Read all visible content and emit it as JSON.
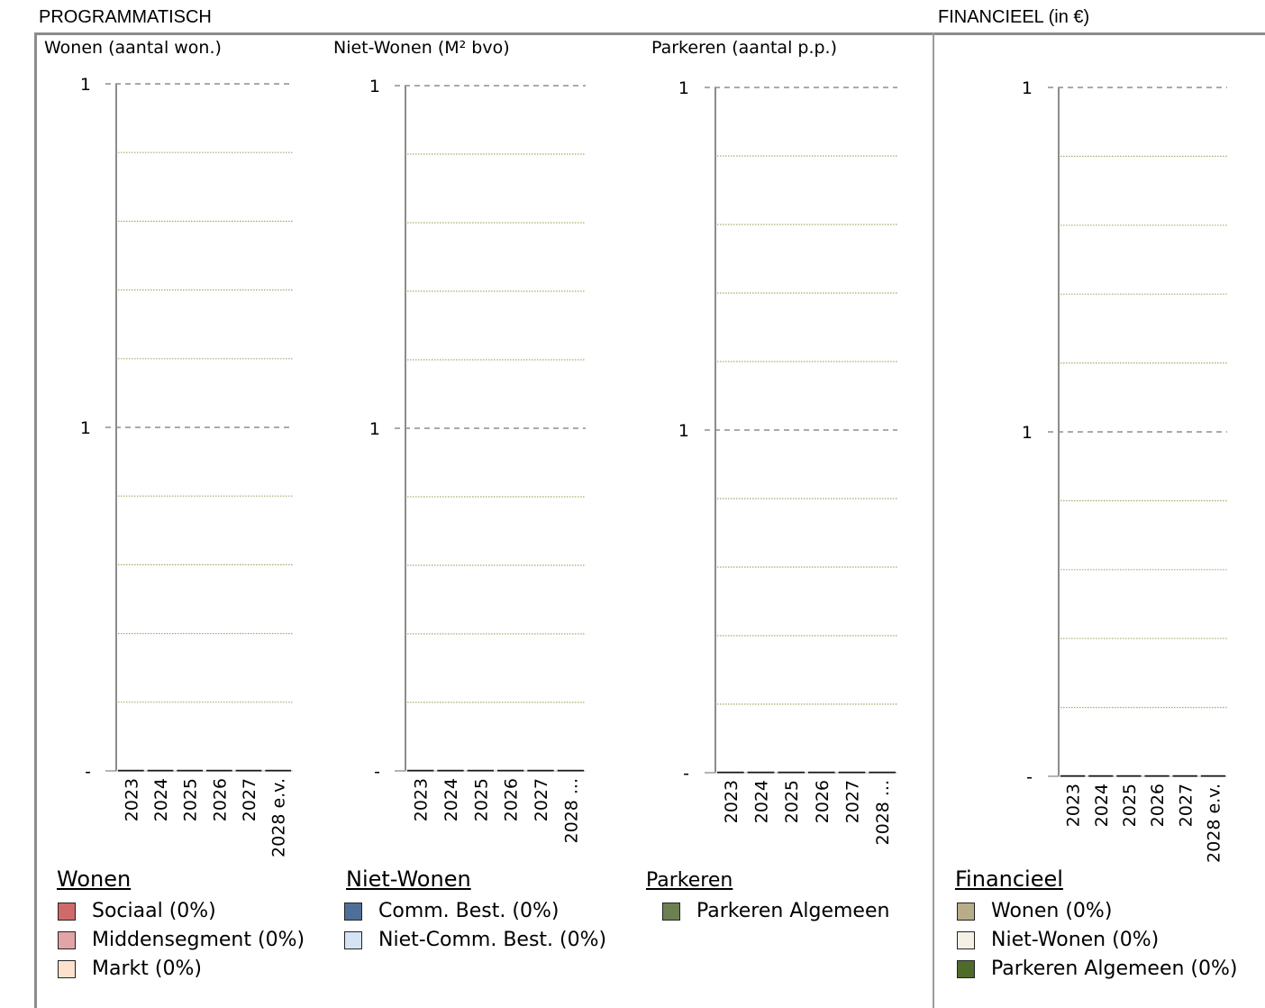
{
  "header": {
    "programmatisch": "PROGRAMMATISCH",
    "financieel": "FINANCIEEL (in €)"
  },
  "chart_data": [
    {
      "type": "bar",
      "title": "Wonen (aantal won.)",
      "categories": [
        "2023",
        "2024",
        "2025",
        "2026",
        "2027",
        "2028 e.v."
      ],
      "series": [
        {
          "name": "Sociaal (0%)",
          "color": "#d06a6a",
          "values": [
            0,
            0,
            0,
            0,
            0,
            0
          ]
        },
        {
          "name": "Middensegment (0%)",
          "color": "#e2a4a4",
          "values": [
            0,
            0,
            0,
            0,
            0,
            0
          ]
        },
        {
          "name": "Markt (0%)",
          "color": "#fde1cc",
          "values": [
            0,
            0,
            0,
            0,
            0,
            0
          ]
        }
      ],
      "yticks": [
        "1",
        "1",
        "-"
      ],
      "grid": true
    },
    {
      "type": "bar",
      "title": "Niet-Wonen (M² bvo)",
      "categories": [
        "2023",
        "2024",
        "2025",
        "2026",
        "2027",
        "2028 ..."
      ],
      "series": [
        {
          "name": "Comm. Best. (0%)",
          "color": "#4f6f9a",
          "values": [
            0,
            0,
            0,
            0,
            0,
            0
          ]
        },
        {
          "name": "Niet-Comm. Best. (0%)",
          "color": "#d4e4f4",
          "values": [
            0,
            0,
            0,
            0,
            0,
            0
          ]
        }
      ],
      "yticks": [
        "1",
        "1",
        "-"
      ],
      "grid": true
    },
    {
      "type": "bar",
      "title": "Parkeren (aantal p.p.)",
      "categories": [
        "2023",
        "2024",
        "2025",
        "2026",
        "2027",
        "2028 ..."
      ],
      "series": [
        {
          "name": "Parkeren Algemeen",
          "color": "#6b8150",
          "values": [
            0,
            0,
            0,
            0,
            0,
            0
          ]
        }
      ],
      "yticks": [
        "1",
        "1",
        "-"
      ],
      "grid": true
    },
    {
      "type": "bar",
      "title": "",
      "categories": [
        "2023",
        "2024",
        "2025",
        "2026",
        "2027",
        "2028 e.v."
      ],
      "series": [
        {
          "name": "Wonen (0%)",
          "color": "#b8ad86",
          "values": [
            0,
            0,
            0,
            0,
            0,
            0
          ]
        },
        {
          "name": "Niet-Wonen (0%)",
          "color": "#f4f0e6",
          "values": [
            0,
            0,
            0,
            0,
            0,
            0
          ]
        },
        {
          "name": "Parkeren Algemeen (0%)",
          "color": "#4e6b2a",
          "values": [
            0,
            0,
            0,
            0,
            0,
            0
          ]
        }
      ],
      "yticks": [
        "1",
        "1",
        "-"
      ],
      "grid": true
    }
  ],
  "legends": {
    "wonen": {
      "title": "Wonen",
      "items": [
        "Sociaal (0%)",
        "Middensegment (0%)",
        "Markt (0%)"
      ]
    },
    "niet_wonen": {
      "title": "Niet-Wonen",
      "items": [
        "Comm. Best. (0%)",
        "Niet-Comm. Best. (0%)"
      ]
    },
    "parkeren": {
      "title": "Parkeren",
      "items": [
        "Parkeren Algemeen"
      ]
    },
    "financieel": {
      "title": "Financieel",
      "items": [
        "Wonen (0%)",
        "Niet-Wonen (0%)",
        "Parkeren Algemeen (0%)"
      ]
    }
  },
  "colors": {
    "frame": "#8c8c8c",
    "major_grid": "#777777",
    "minor_grid": "#a9a66b",
    "axis": "#8c8c8c"
  }
}
